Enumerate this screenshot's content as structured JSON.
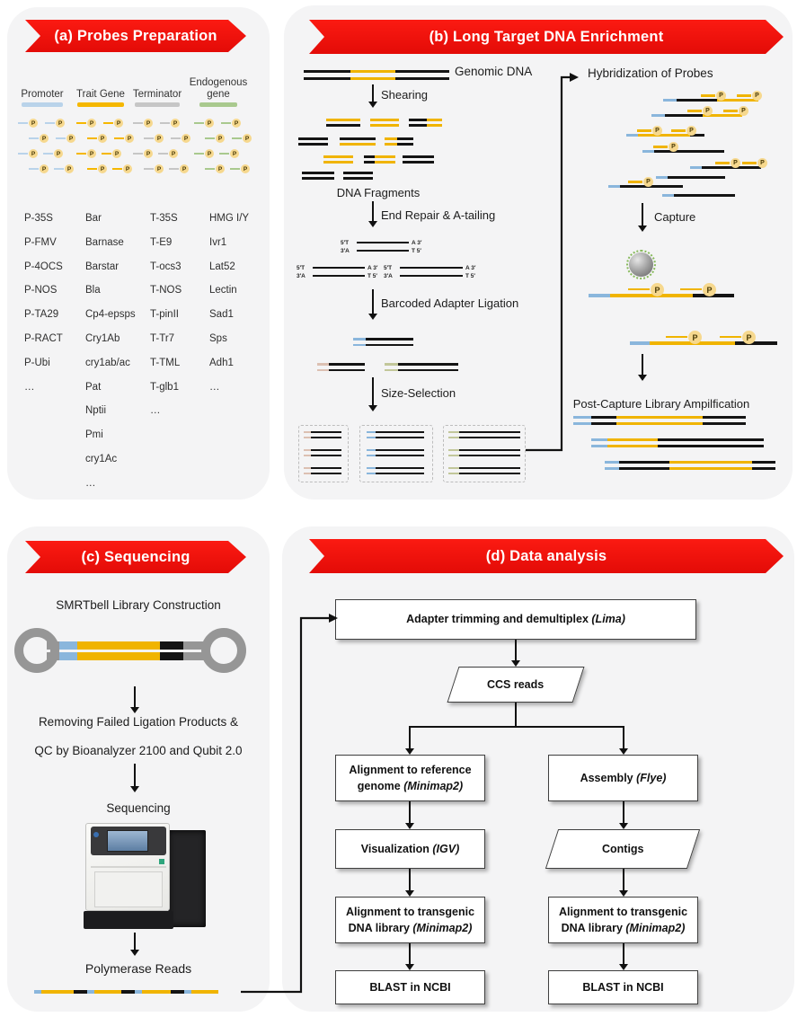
{
  "figure": {
    "panel_a": {
      "title": "(a)  Probes Preparation",
      "p_label": "P",
      "columns": [
        {
          "header": "Promoter",
          "bar_color": "#b9d3ea",
          "genes": [
            "P-35S",
            "P-FMV",
            "P-4OCS",
            "P-NOS",
            "P-TA29",
            "P-RACT",
            "P-Ubi",
            "…"
          ]
        },
        {
          "header": "Trait Gene",
          "bar_color": "#f5b700",
          "genes": [
            "Bar",
            "Barnase",
            "Barstar",
            "Bla",
            "Cp4-epsps",
            "Cry1Ab",
            "cry1ab/ac",
            "Pat",
            "Nptii",
            "Pmi",
            "cry1Ac",
            "…"
          ]
        },
        {
          "header": "Terminator",
          "bar_color": "#c6c6c6",
          "genes": [
            "T-35S",
            "T-E9",
            "T-ocs3",
            "T-NOS",
            "T-pinII",
            "T-Tr7",
            "T-TML",
            "T-glb1",
            "…"
          ]
        },
        {
          "header": "Endogenous gene",
          "bar_color": "#a9c98e",
          "genes": [
            "HMG I/Y",
            "Ivr1",
            "Lat52",
            "Lectin",
            "Sad1",
            "Sps",
            "Adh1",
            "…"
          ]
        }
      ]
    },
    "panel_b": {
      "title": "(b)  Long Target DNA Enrichment",
      "steps": {
        "genomic_dna": "Genomic DNA",
        "shearing": "Shearing",
        "dna_fragments": "DNA Fragments",
        "end_repair": "End Repair & A-tailing",
        "adapter_ligation": "Barcoded Adapter Ligation",
        "size_selection": "Size-Selection",
        "hybridization": "Hybridization of Probes",
        "capture": "Capture",
        "post_capture": "Post-Capture Library Ampilfication"
      },
      "strand_labels": {
        "top_left": "5′T",
        "top_right": "A 3′",
        "bottom_left": "3′A",
        "bottom_right": "T 5′"
      }
    },
    "panel_c": {
      "title": "(c)  Sequencing",
      "steps": {
        "smrtbell": "SMRTbell Library Construction",
        "qc_line1": "Removing Failed Ligation Products &",
        "qc_line2": "QC by Bioanalyzer 2100 and Qubit 2.0",
        "sequencing": "Sequencing",
        "polymerase_reads": "Polymerase Reads"
      }
    },
    "panel_d": {
      "title": "(d) Data analysis",
      "nodes": {
        "adapter_trimming": {
          "text": "Adapter trimming and demultiplex ",
          "tool": "(Lima)"
        },
        "ccs_reads": {
          "text": "CCS reads"
        },
        "align_reference": {
          "text": "Alignment to reference genome ",
          "tool": "(Minimap2)"
        },
        "assembly": {
          "text": "Assembly ",
          "tool": "(Flye)"
        },
        "visualization": {
          "text": "Visualization ",
          "tool": "(IGV)"
        },
        "contigs": {
          "text": "Contigs"
        },
        "align_transgenic_left": {
          "text": "Alignment to transgenic DNA library ",
          "tool": "(Minimap2)"
        },
        "align_transgenic_right": {
          "text": "Alignment to transgenic DNA library ",
          "tool": "(Minimap2)"
        },
        "blast_left": {
          "text": "BLAST in NCBI"
        },
        "blast_right": {
          "text": "BLAST in NCBI"
        }
      }
    },
    "colors": {
      "banner_red": "#ee1111",
      "dna_black": "#141414",
      "probe_yellow": "#f0b400",
      "adapter_blue": "#8ab6dc",
      "adapter_pink": "#dcc0b2",
      "adapter_green": "#c2c79a"
    }
  }
}
